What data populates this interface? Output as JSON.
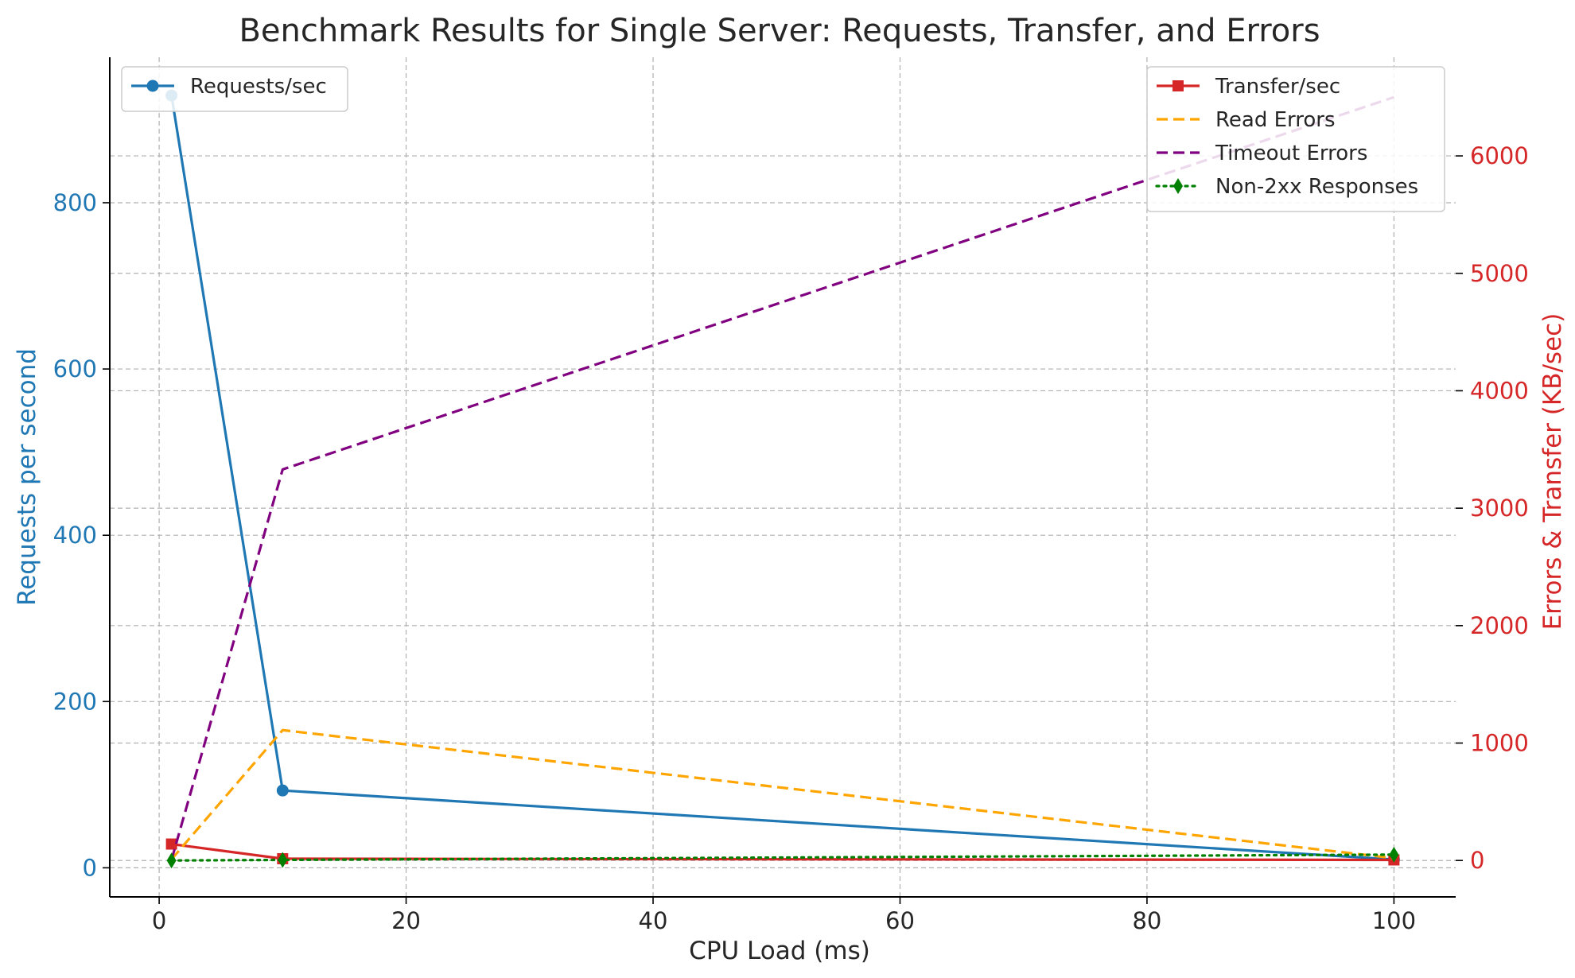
{
  "chart_data": {
    "type": "line",
    "title": "Benchmark Results for Single Server: Requests, Transfer, and Errors",
    "xlabel": "CPU Load (ms)",
    "ylabel_left": "Requests per second",
    "ylabel_right": "Errors & Transfer (KB/sec)",
    "x": [
      1,
      10,
      100
    ],
    "xlim": [
      -4,
      105
    ],
    "ylim_left": [
      -35,
      975
    ],
    "ylim_right": [
      -310,
      6840
    ],
    "xticks": [
      "0",
      "20",
      "40",
      "60",
      "80",
      "100"
    ],
    "yticks_left": [
      "0",
      "200",
      "400",
      "600",
      "800"
    ],
    "yticks_right": [
      "0",
      "1000",
      "2000",
      "3000",
      "4000",
      "5000",
      "6000"
    ],
    "grid": true,
    "left_series": [
      {
        "name": "Requests/sec",
        "values": [
          929,
          93,
          10
        ],
        "color": "#1f77b4",
        "style": "solid",
        "marker": "circle"
      }
    ],
    "right_series": [
      {
        "name": "Transfer/sec",
        "values": [
          140,
          15,
          5
        ],
        "color": "#d62728",
        "style": "solid",
        "marker": "square"
      },
      {
        "name": "Read Errors",
        "values": [
          10,
          1110,
          20
        ],
        "color": "#ffa500",
        "style": "dashed",
        "marker": "none"
      },
      {
        "name": "Timeout Errors",
        "values": [
          5,
          3330,
          6500
        ],
        "color": "#800080",
        "style": "dashed",
        "marker": "none"
      },
      {
        "name": "Non-2xx Responses",
        "values": [
          0,
          5,
          50
        ],
        "color": "#008000",
        "style": "dotted",
        "marker": "diamond"
      }
    ],
    "legend_left_placement": "upper-left",
    "legend_right_placement": "upper-right",
    "left_axis_color": "#1f77b4",
    "right_axis_color": "#d62728"
  }
}
